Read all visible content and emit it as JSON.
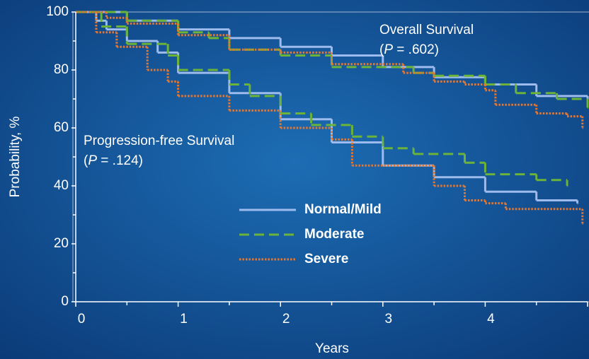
{
  "chart_data": {
    "type": "step",
    "x_label": "Years",
    "y_label": "Probability, %",
    "xlim": [
      0,
      5
    ],
    "ylim": [
      0,
      100
    ],
    "xticks": [
      0,
      1,
      2,
      3,
      4,
      5
    ],
    "yticks": [
      0,
      20,
      40,
      60,
      80,
      100
    ],
    "xminor": [
      0.5,
      1.5,
      2.5,
      3.5,
      4.5
    ],
    "yminor": [
      10,
      30,
      50,
      70,
      90
    ],
    "annotations": [
      {
        "text": "Overall Survival",
        "p": [
          "(",
          "P",
          " = .602)"
        ]
      },
      {
        "text": "Progression-free Survival",
        "p": [
          "(",
          "P",
          " = .124)"
        ]
      }
    ],
    "series": [
      {
        "name": "Normal/Mild",
        "color": "#9dbbec",
        "dash": "solid",
        "os": {
          "x": [
            0,
            0.5,
            1,
            1.5,
            2,
            2.5,
            3,
            3.5,
            4,
            4.5,
            5
          ],
          "values": [
            100,
            97,
            94,
            91,
            88,
            85,
            81,
            77.5,
            75,
            71,
            68
          ]
        },
        "pfs": {
          "x": [
            0,
            0.2,
            0.3,
            0.5,
            0.8,
            1,
            1.5,
            2,
            2.5,
            3,
            3.5,
            4,
            4.5,
            4.9
          ],
          "values": [
            100,
            97,
            94,
            90,
            86,
            79,
            72,
            63,
            55,
            47,
            43,
            38,
            35,
            34
          ]
        }
      },
      {
        "name": "Moderate",
        "color": "#6cb33a",
        "dash": "dashed",
        "os": {
          "x": [
            0,
            0.5,
            1,
            1.3,
            1.5,
            2,
            2.5,
            3.3,
            3.5,
            4,
            4.3,
            4.7,
            5
          ],
          "values": [
            100,
            97,
            93,
            91,
            87,
            85,
            81,
            79,
            78,
            75,
            72,
            70,
            67
          ]
        },
        "pfs": {
          "x": [
            0,
            0.25,
            0.5,
            0.9,
            1,
            1.5,
            1.7,
            2,
            2.3,
            2.7,
            3,
            3.3,
            3.8,
            4,
            4.5,
            4.8
          ],
          "values": [
            100,
            95,
            89,
            85,
            80,
            75,
            71,
            65,
            61,
            57,
            53,
            51,
            48,
            44,
            42,
            40
          ]
        }
      },
      {
        "name": "Severe",
        "color": "#e8772e",
        "dash": "dotted",
        "os": {
          "x": [
            0,
            0.3,
            0.5,
            1,
            1.5,
            2,
            2.5,
            3.2,
            3.5,
            3.8,
            4,
            4.1,
            4.5,
            4.8,
            4.95
          ],
          "values": [
            100,
            98,
            96,
            92,
            87,
            86,
            82,
            79,
            76,
            75,
            73,
            68,
            65,
            64,
            60
          ]
        },
        "pfs": {
          "x": [
            0,
            0.2,
            0.4,
            0.7,
            0.9,
            1,
            1.5,
            2,
            2.5,
            2.7,
            3.5,
            3.8,
            4,
            4.2,
            4.95
          ],
          "values": [
            100,
            93,
            88,
            80,
            76,
            71,
            66,
            60,
            56,
            47,
            40,
            35,
            34,
            32,
            27
          ]
        }
      }
    ]
  }
}
